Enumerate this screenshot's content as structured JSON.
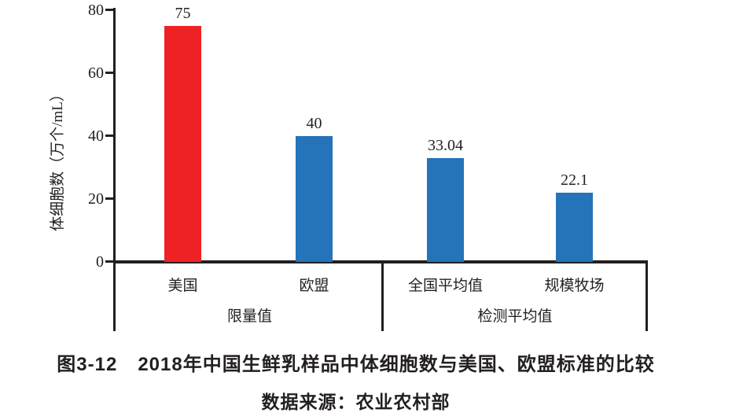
{
  "figure": {
    "caption_prefix": "图3-12",
    "caption_title": "2018年中国生鲜乳样品中体细胞数与美国、欧盟标准的比较",
    "source_note": "数据来源：农业农村部"
  },
  "chart_data": {
    "type": "bar",
    "title": "图3-12 2018年中国生鲜乳样品中体细胞数与美国、欧盟标准的比较",
    "source": "数据来源：农业农村部",
    "ylabel": "体细胞数（万个/mL）",
    "xlabel": "",
    "ylim": [
      0,
      80
    ],
    "yticks": [
      0,
      20,
      40,
      60,
      80
    ],
    "grid": false,
    "legend": null,
    "categories": [
      "美国",
      "欧盟",
      "全国平均值",
      "规模牧场"
    ],
    "values": [
      75,
      40,
      33.04,
      22.1
    ],
    "bars": [
      {
        "id": "usa",
        "category": "美国",
        "value": 75,
        "value_label": "75",
        "color": "#ee2224",
        "group": "限量值"
      },
      {
        "id": "eu",
        "category": "欧盟",
        "value": 40,
        "value_label": "40",
        "color": "#2573b8",
        "group": "限量值"
      },
      {
        "id": "national-average",
        "category": "全国平均值",
        "value": 33.04,
        "value_label": "33.04",
        "color": "#2573b8",
        "group": "检测平均值"
      },
      {
        "id": "scale-farm",
        "category": "规模牧场",
        "value": 22.1,
        "value_label": "22.1",
        "color": "#2573b8",
        "group": "检测平均值"
      }
    ],
    "groups": [
      {
        "label": "限量值"
      },
      {
        "label": "检测平均值"
      }
    ],
    "colors": {
      "bar_red": "#ee2224",
      "bar_blue": "#2573b8",
      "ink": "#231f20",
      "background": "#ffffff"
    }
  }
}
